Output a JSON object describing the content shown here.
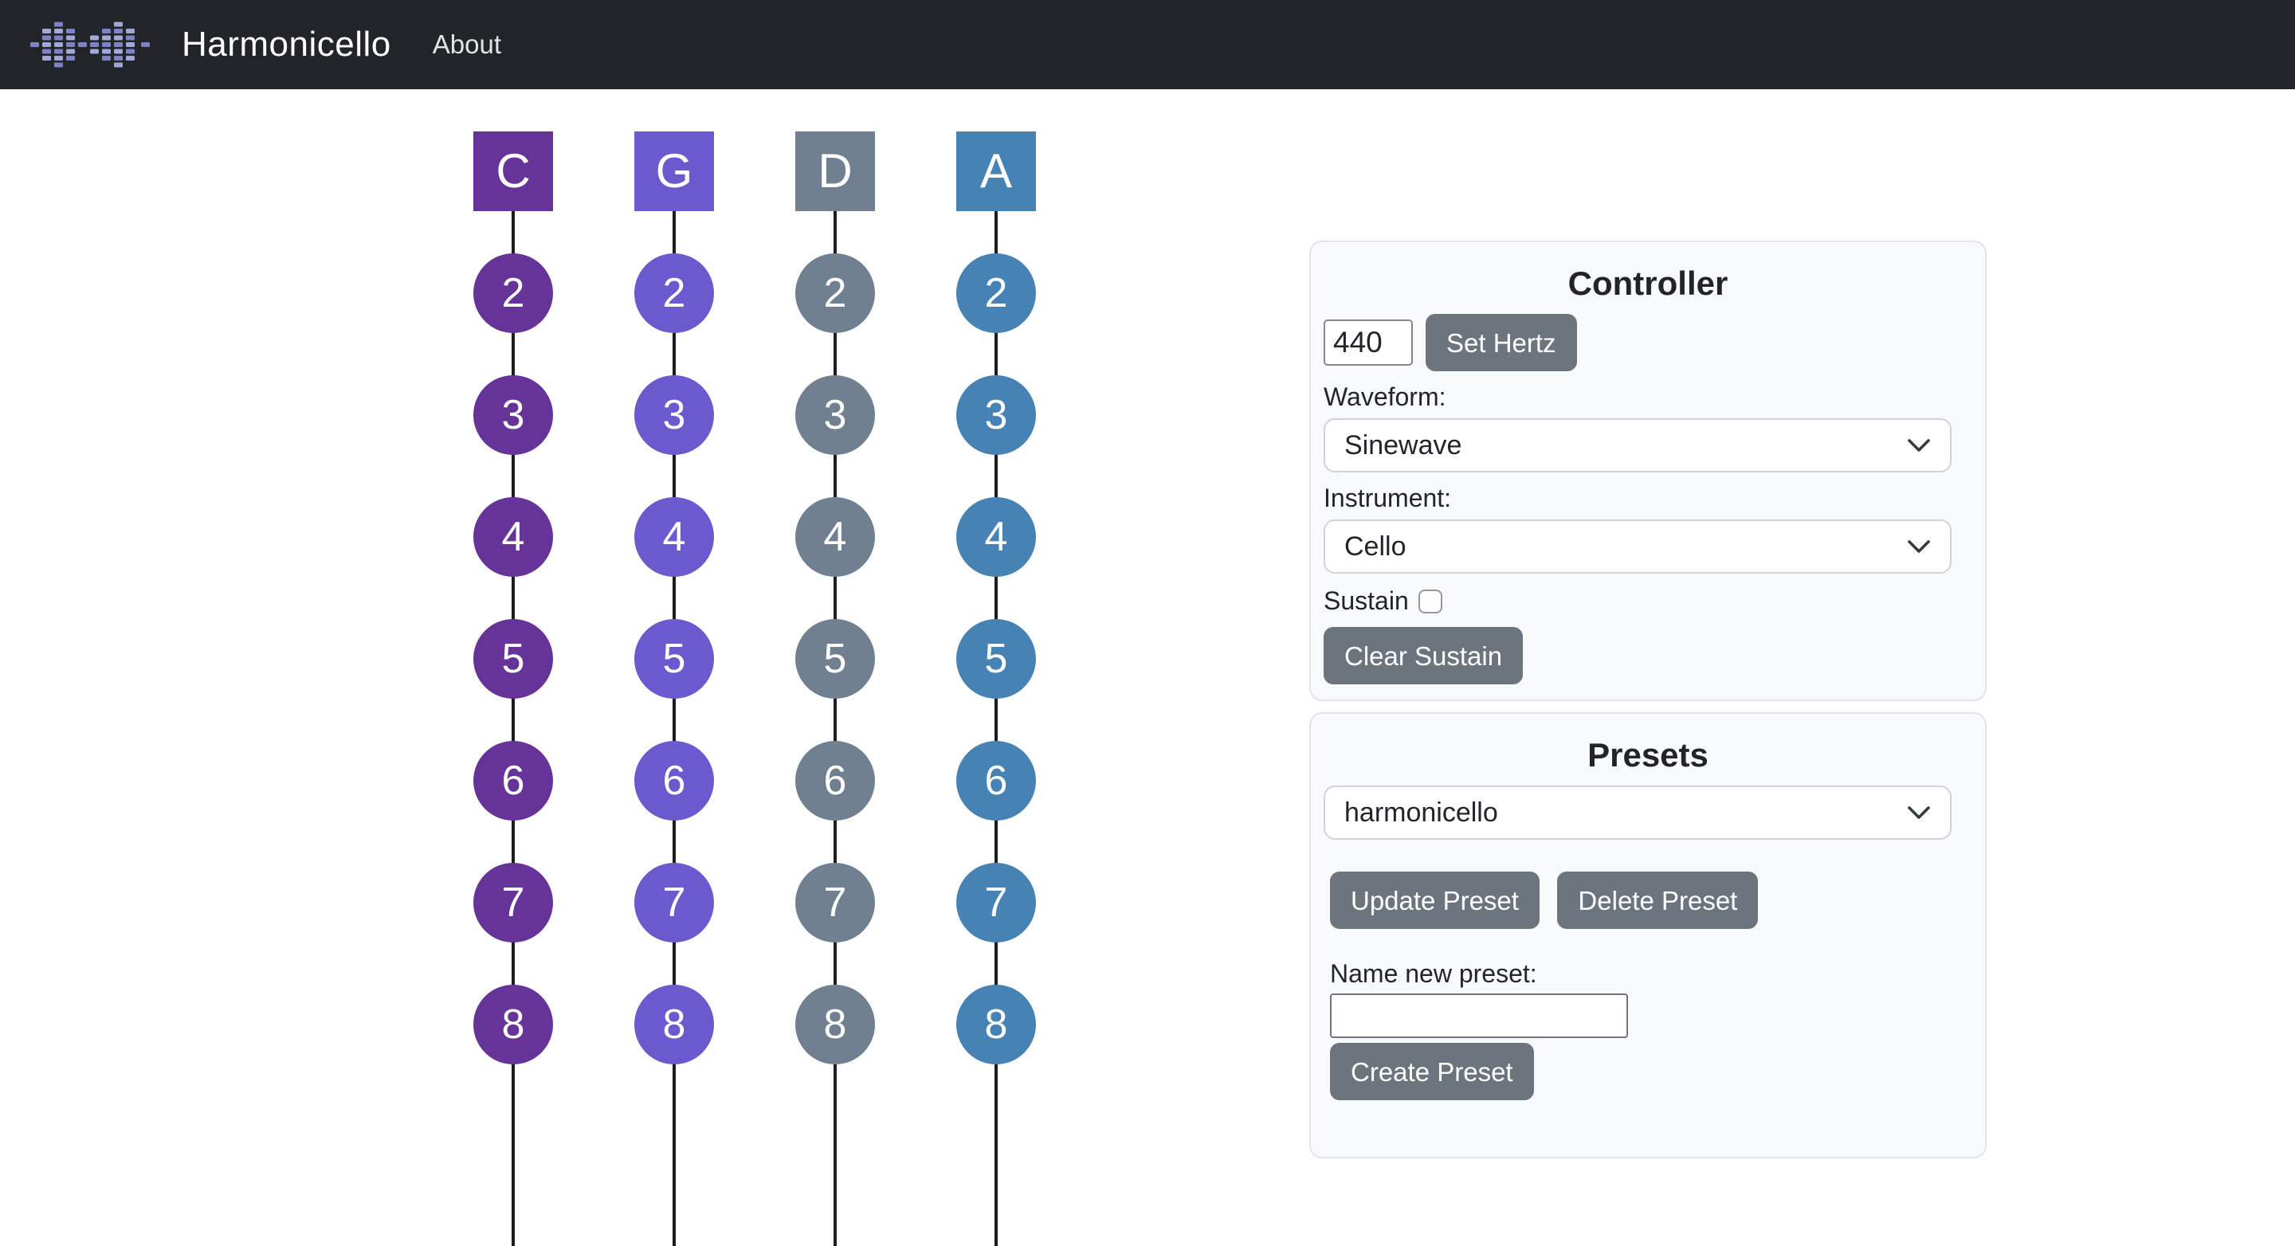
{
  "navbar": {
    "brand": "Harmonicello",
    "about_label": "About"
  },
  "strings": [
    {
      "note": "C",
      "color": "#663399",
      "positions": [
        "2",
        "3",
        "4",
        "5",
        "6",
        "7",
        "8"
      ]
    },
    {
      "note": "G",
      "color": "#6a5acd",
      "positions": [
        "2",
        "3",
        "4",
        "5",
        "6",
        "7",
        "8"
      ]
    },
    {
      "note": "D",
      "color": "#708090",
      "positions": [
        "2",
        "3",
        "4",
        "5",
        "6",
        "7",
        "8"
      ]
    },
    {
      "note": "A",
      "color": "#4682b4",
      "positions": [
        "2",
        "3",
        "4",
        "5",
        "6",
        "7",
        "8"
      ]
    }
  ],
  "controller": {
    "title": "Controller",
    "hertz_value": "440",
    "set_hertz_label": "Set Hertz",
    "waveform_label": "Waveform:",
    "waveform_value": "Sinewave",
    "instrument_label": "Instrument:",
    "instrument_value": "Cello",
    "sustain_label": "Sustain",
    "sustain_checked": false,
    "clear_sustain_label": "Clear Sustain"
  },
  "presets": {
    "title": "Presets",
    "selected_preset": "harmonicello",
    "update_label": "Update Preset",
    "delete_label": "Delete Preset",
    "name_new_label": "Name new preset:",
    "new_preset_value": "",
    "create_label": "Create Preset"
  },
  "colors": {
    "navbar_bg": "#212529",
    "button_gray": "#6c757d",
    "card_bg": "#f8f9fa",
    "string_line": "#1b1d21",
    "logo_purple": "#7d83c6",
    "logo_purple_light": "#a2a7d8"
  }
}
